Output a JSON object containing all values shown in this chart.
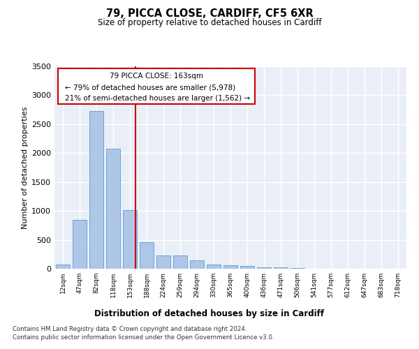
{
  "title": "79, PICCA CLOSE, CARDIFF, CF5 6XR",
  "subtitle": "Size of property relative to detached houses in Cardiff",
  "xlabel": "Distribution of detached houses by size in Cardiff",
  "ylabel": "Number of detached properties",
  "categories": [
    "12sqm",
    "47sqm",
    "82sqm",
    "118sqm",
    "153sqm",
    "188sqm",
    "224sqm",
    "259sqm",
    "294sqm",
    "330sqm",
    "365sqm",
    "400sqm",
    "436sqm",
    "471sqm",
    "506sqm",
    "541sqm",
    "577sqm",
    "612sqm",
    "647sqm",
    "683sqm",
    "718sqm"
  ],
  "values": [
    70,
    850,
    2730,
    2070,
    1010,
    460,
    230,
    230,
    140,
    70,
    55,
    45,
    25,
    20,
    15,
    6,
    5,
    3,
    2,
    1,
    0
  ],
  "bar_color": "#aec6e8",
  "bar_edge_color": "#5b9bd5",
  "vline_color": "#cc0000",
  "vline_pos": 4.35,
  "annotation_line1": "79 PICCA CLOSE: 163sqm",
  "annotation_line2": "← 79% of detached houses are smaller (5,978)",
  "annotation_line3": "21% of semi-detached houses are larger (1,562) →",
  "annotation_box_color": "#cc0000",
  "ylim": [
    0,
    3500
  ],
  "yticks": [
    0,
    500,
    1000,
    1500,
    2000,
    2500,
    3000,
    3500
  ],
  "background_color": "#eaeff7",
  "grid_color": "#ffffff",
  "footer_line1": "Contains HM Land Registry data © Crown copyright and database right 2024.",
  "footer_line2": "Contains public sector information licensed under the Open Government Licence v3.0."
}
